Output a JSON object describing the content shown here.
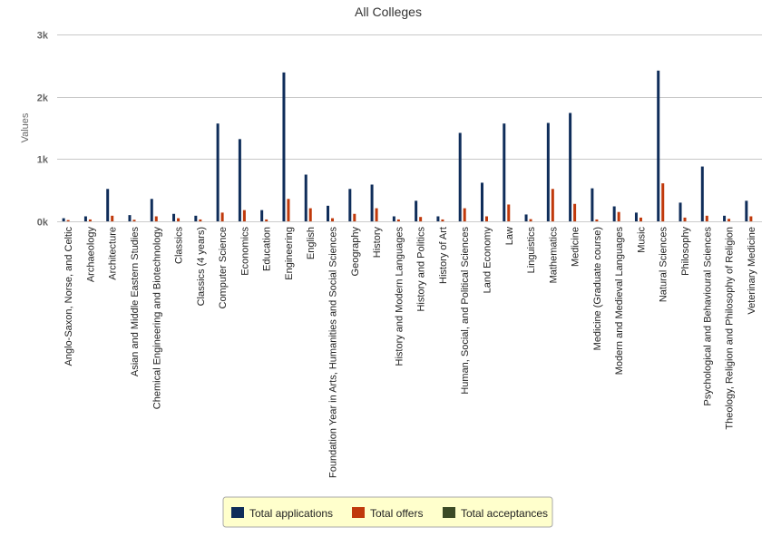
{
  "chart_data": {
    "type": "bar",
    "title": "All Colleges",
    "xlabel": "",
    "ylabel": "Values",
    "ylim": [
      0,
      3000
    ],
    "yticks": [
      {
        "value": 0,
        "label": "0k"
      },
      {
        "value": 1000,
        "label": "1k"
      },
      {
        "value": 2000,
        "label": "2k"
      },
      {
        "value": 3000,
        "label": "3k"
      }
    ],
    "grid": true,
    "legend": "bottom-center",
    "categories": [
      "Anglo-Saxon, Norse, and Celtic",
      "Archaeology",
      "Architecture",
      "Asian and Middle Eastern Studies",
      "Chemical Engineering and Biotechnology",
      "Classics",
      "Classics (4 years)",
      "Computer Science",
      "Economics",
      "Education",
      "Engineering",
      "English",
      "Foundation Year in Arts, Humanities and Social Sciences",
      "Geography",
      "History",
      "History and Modern Languages",
      "History and Politics",
      "History of Art",
      "Human, Social, and Political Sciences",
      "Land Economy",
      "Law",
      "Linguistics",
      "Mathematics",
      "Medicine",
      "Medicine (Graduate course)",
      "Modern and Medieval Languages",
      "Music",
      "Natural Sciences",
      "Philosophy",
      "Psychological and Behavioural Sciences",
      "Theology, Religion and Philosophy of Religion",
      "Veterinary Medicine"
    ],
    "series": [
      {
        "name": "Total applications",
        "color": "#0f2d5a",
        "values": [
          50,
          80,
          520,
          100,
          360,
          120,
          90,
          1570,
          1320,
          180,
          2390,
          750,
          250,
          520,
          590,
          80,
          330,
          80,
          1420,
          620,
          1570,
          110,
          1580,
          1740,
          530,
          240,
          140,
          2420,
          300,
          880,
          90,
          330
        ]
      },
      {
        "name": "Total offers",
        "color": "#c0390b",
        "values": [
          20,
          30,
          90,
          25,
          80,
          50,
          30,
          140,
          180,
          30,
          360,
          210,
          50,
          120,
          210,
          30,
          70,
          30,
          210,
          80,
          270,
          35,
          520,
          280,
          30,
          150,
          60,
          610,
          60,
          90,
          40,
          80
        ]
      },
      {
        "name": "Total acceptances",
        "color": "#3b4a26",
        "values": [
          0,
          0,
          0,
          0,
          0,
          0,
          0,
          0,
          0,
          0,
          0,
          0,
          0,
          0,
          0,
          0,
          0,
          0,
          0,
          0,
          0,
          0,
          0,
          0,
          0,
          0,
          0,
          0,
          0,
          0,
          0,
          0
        ]
      }
    ]
  }
}
